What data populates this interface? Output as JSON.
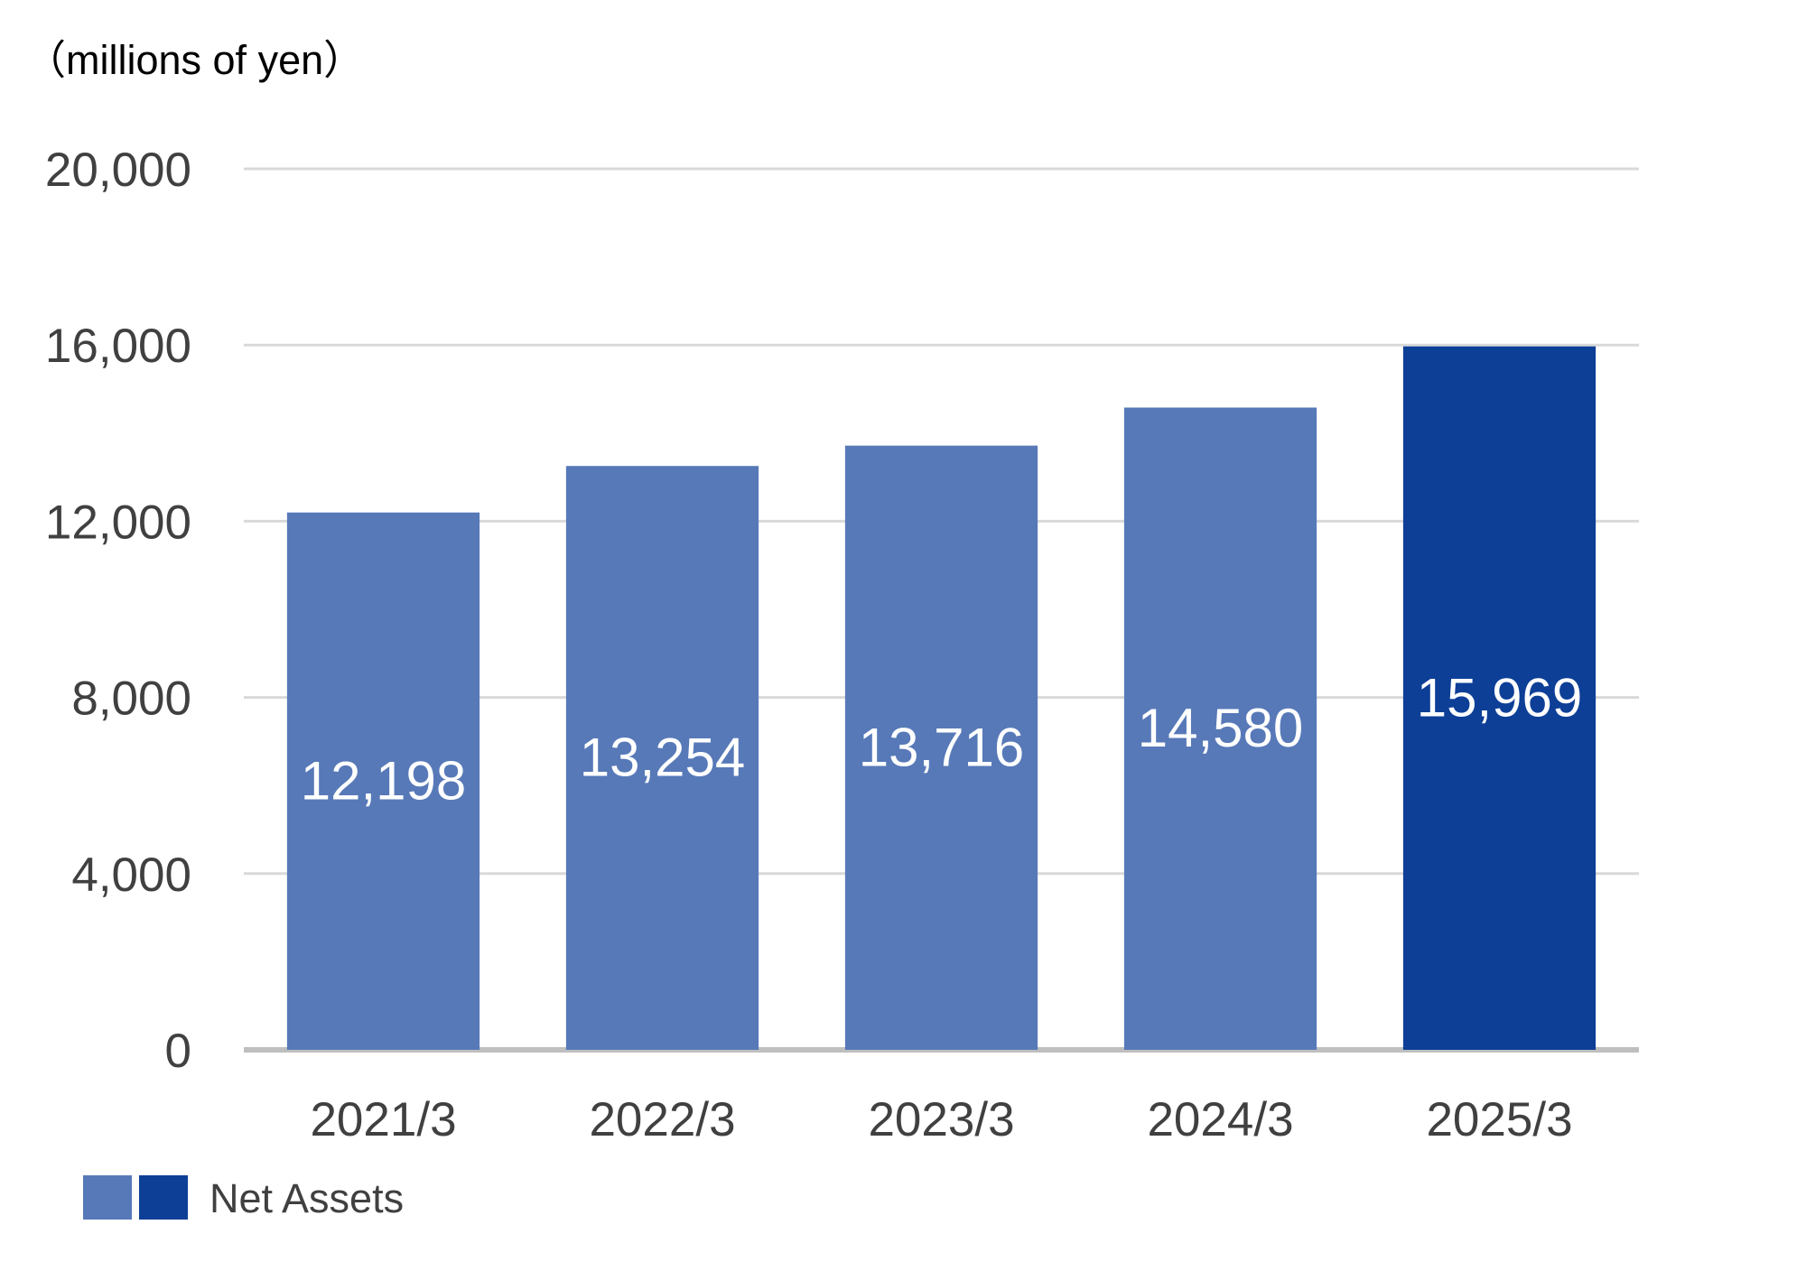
{
  "chart_data": {
    "type": "bar",
    "unit_label": "（millions of yen）",
    "categories": [
      "2021/3",
      "2022/3",
      "2023/3",
      "2024/3",
      "2025/3"
    ],
    "series": [
      {
        "name": "Net Assets",
        "values": [
          12198,
          13254,
          13716,
          14580,
          15969
        ]
      }
    ],
    "data_labels": [
      "12,198",
      "13,254",
      "13,716",
      "14,580",
      "15,969"
    ],
    "y_ticks": [
      0,
      4000,
      8000,
      12000,
      16000,
      20000
    ],
    "y_tick_labels": [
      "0",
      "4,000",
      "8,000",
      "12,000",
      "16,000",
      "20,000"
    ],
    "ylim": [
      0,
      20000
    ],
    "grid": true,
    "legend_position": "bottom-left",
    "colors": {
      "bar": "#5779b8",
      "bar_highlight": "#0d3f97",
      "grid": "#d9d9d9",
      "axis": "#bfbfbf",
      "text": "#404040",
      "label": "#ffffff"
    },
    "highlight_index": 4
  }
}
